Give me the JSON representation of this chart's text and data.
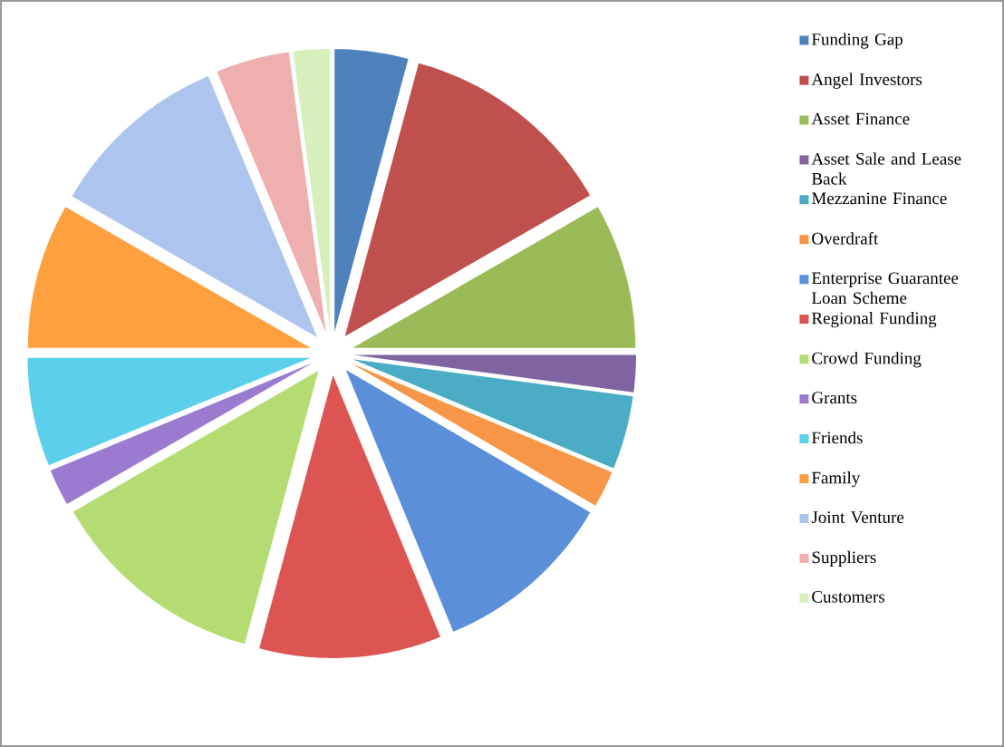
{
  "chart_data": {
    "type": "pie",
    "categories": [
      "Funding Gap",
      "Angel Investors",
      "Asset Finance",
      "Asset Sale and Lease Back",
      "Mezzanine Finance",
      "Overdraft",
      "Enterprise Guarantee Loan Scheme",
      "Regional Funding",
      "Crowd Funding",
      "Grants",
      "Friends",
      "Family",
      "Joint Venture",
      "Suppliers",
      "Customers"
    ],
    "values": [
      4.2,
      12.5,
      8.3,
      2.1,
      4.2,
      2.1,
      10.4,
      10.4,
      12.5,
      2.1,
      6.2,
      8.3,
      10.4,
      4.2,
      2.1
    ],
    "colors": [
      "#4f81bd",
      "#c0504d",
      "#9bbb59",
      "#8064a2",
      "#4bacc6",
      "#f79646",
      "#5b8fd9",
      "#dd5552",
      "#b4dc72",
      "#9a7bd0",
      "#5ccfea",
      "#ffa040",
      "#acc4ee",
      "#efafaf",
      "#d6efbc"
    ],
    "legend": "right"
  }
}
